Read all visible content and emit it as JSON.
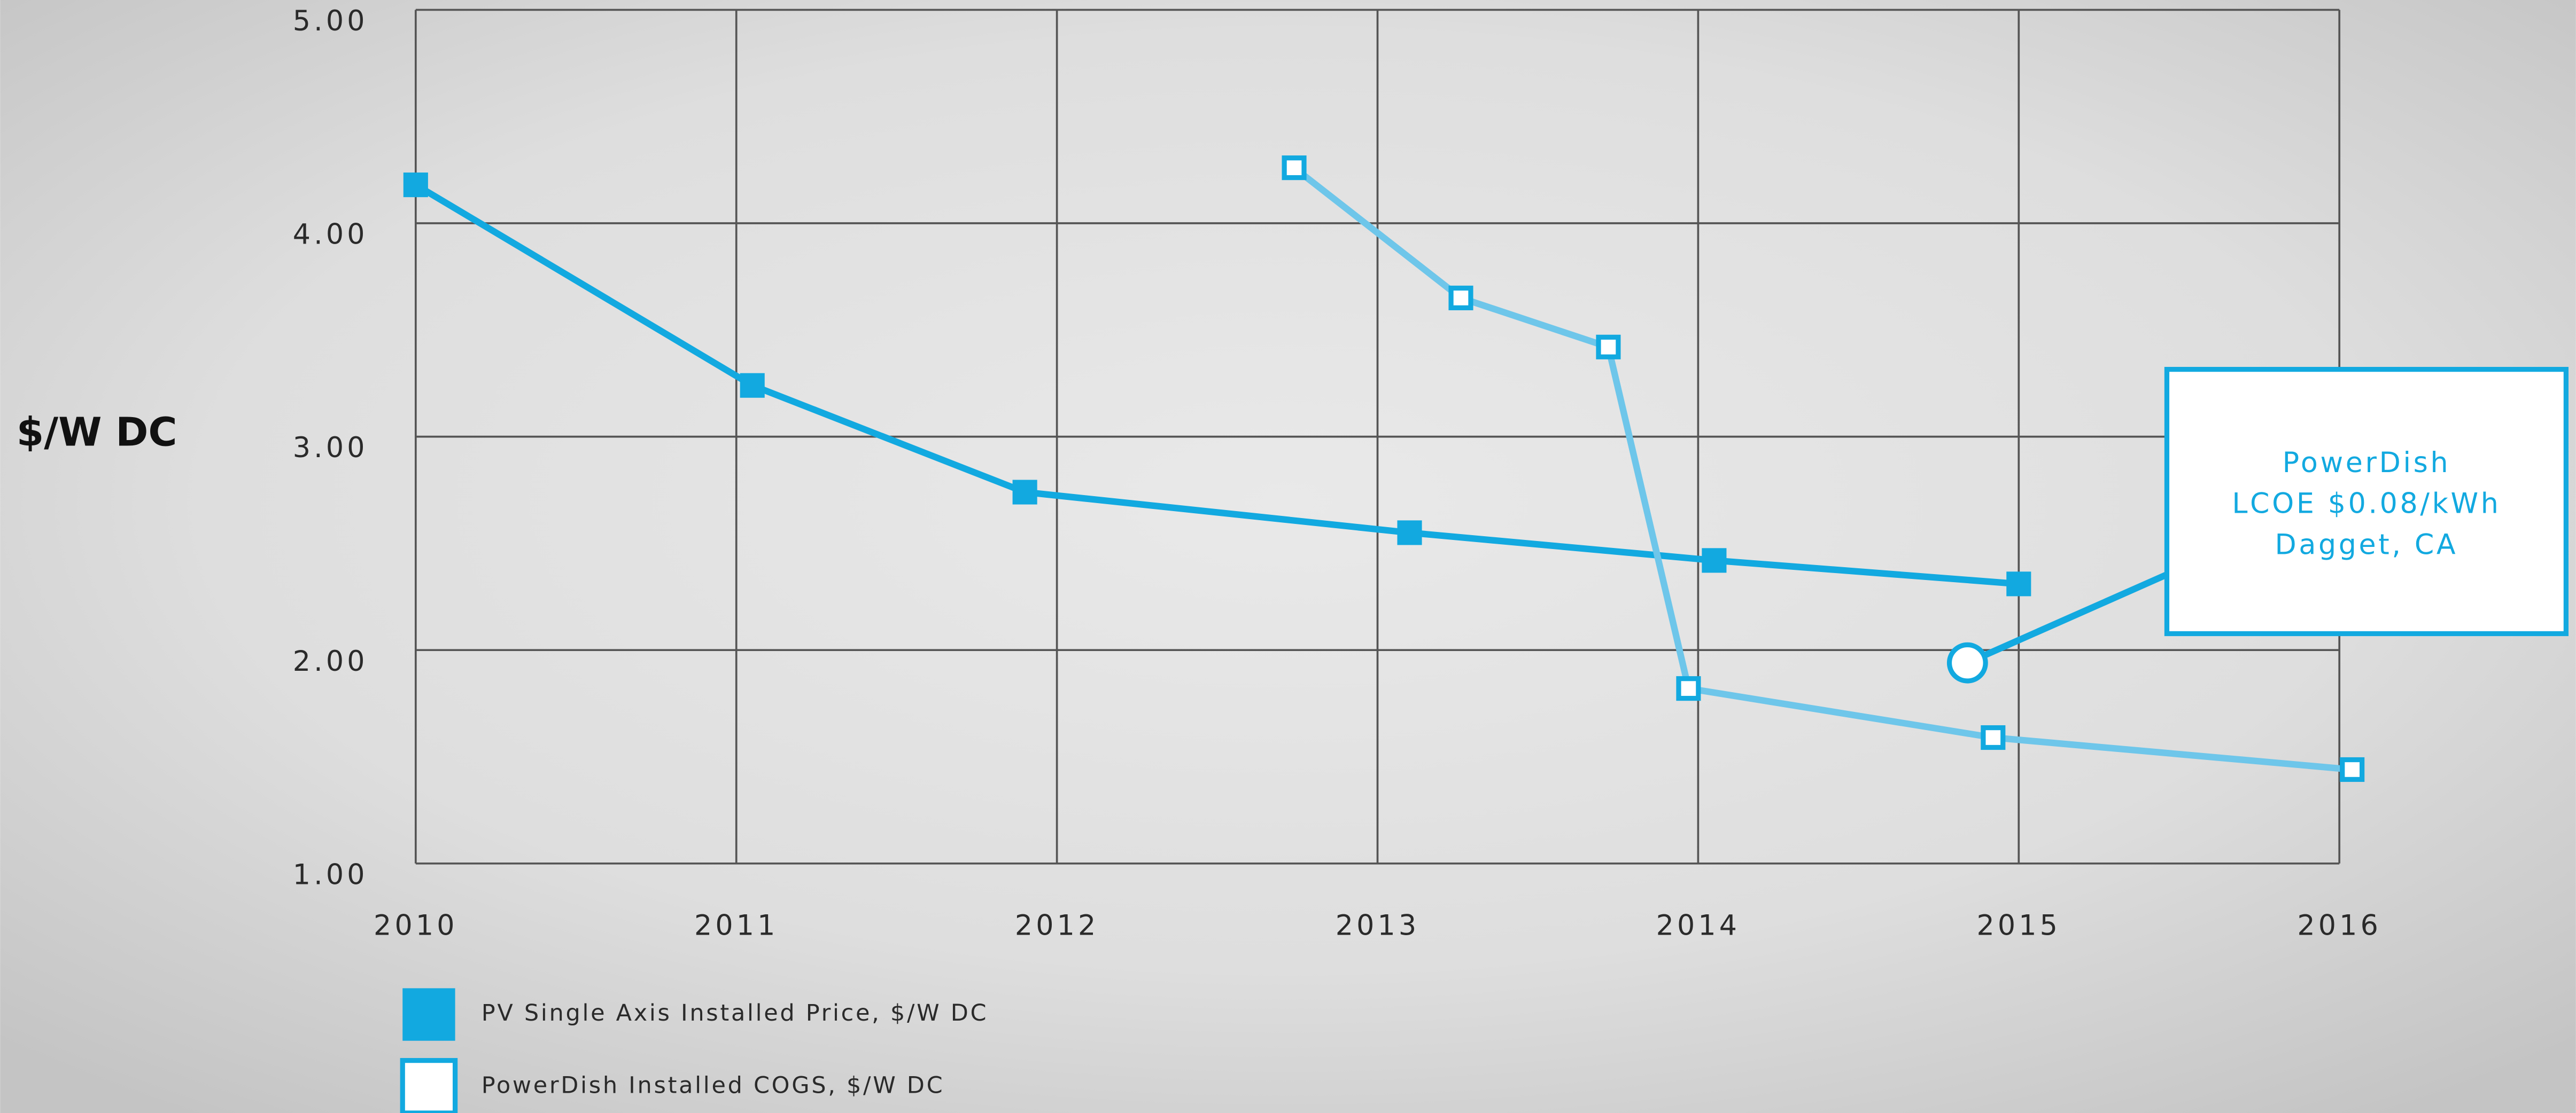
{
  "chart_data": {
    "type": "line",
    "y_label": "$/W DC",
    "xlim": [
      2010,
      2016
    ],
    "xticks": [
      2010,
      2011,
      2012,
      2013,
      2014,
      2015,
      2016
    ],
    "ylim": [
      1,
      5
    ],
    "yticks": [
      {
        "value": 1,
        "label": "1.00"
      },
      {
        "value": 2,
        "label": "2.00"
      },
      {
        "value": 3,
        "label": "3.00"
      },
      {
        "value": 4,
        "label": "4.00"
      },
      {
        "value": 5,
        "label": "5.00"
      }
    ],
    "grid": true,
    "legend": "bottom-left",
    "series": [
      {
        "name": "PV Single Axis Installed Price, $/W DC",
        "color": "#12a9e0",
        "marker": "filled-square",
        "x": [
          2010,
          2011.05,
          2011.9,
          2013.1,
          2014.05,
          2015
        ],
        "values": [
          4.18,
          3.24,
          2.74,
          2.55,
          2.42,
          2.31
        ]
      },
      {
        "name": "PowerDish Installed COGS, $/W DC",
        "color": "#6ec6ea",
        "marker": "open-square",
        "x": [
          2012.74,
          2013.26,
          2013.72,
          2013.97,
          2014.92,
          2016.04
        ],
        "values": [
          4.26,
          3.65,
          3.42,
          1.82,
          1.59,
          1.44
        ]
      }
    ],
    "annotations": [
      {
        "text": [
          "PowerDish",
          "LCOE $0.08/kWh",
          "Dagget, CA"
        ],
        "x": 2014.84,
        "y": 1.94
      }
    ]
  }
}
